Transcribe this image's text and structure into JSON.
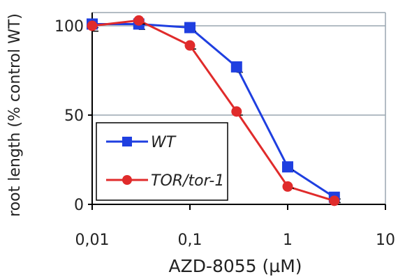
{
  "chart_data": {
    "type": "line",
    "xscale": "log",
    "xlabel": "AZD-8055 (µM)",
    "ylabel": "root length (% control WT)",
    "xlim": [
      0.01,
      10
    ],
    "ylim": [
      0,
      100
    ],
    "xticks": [
      0.01,
      0.1,
      1,
      10
    ],
    "xtick_labels": [
      "0,01",
      "0,1",
      "1",
      "10"
    ],
    "yticks": [
      0,
      50,
      100
    ],
    "ytick_labels": [
      "0",
      "50",
      "100"
    ],
    "grid": "horizontal",
    "legend_position": "lower-left",
    "series": [
      {
        "name": "WT",
        "color": "#1f3fe0",
        "marker": "square",
        "x": [
          0.01,
          0.03,
          0.1,
          0.3,
          1,
          3
        ],
        "y": [
          101,
          101,
          99,
          77,
          21,
          4
        ],
        "err": [
          2,
          3,
          2,
          3,
          2,
          1
        ]
      },
      {
        "name": "TOR/tor-1",
        "color": "#e02b2b",
        "marker": "circle",
        "x": [
          0.01,
          0.03,
          0.1,
          0.3,
          1,
          3
        ],
        "y": [
          100,
          103,
          89,
          52,
          10,
          2
        ],
        "err": [
          3,
          2,
          2,
          2,
          1,
          1
        ]
      }
    ]
  }
}
